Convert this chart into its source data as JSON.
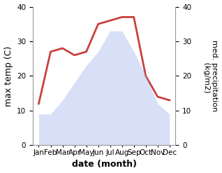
{
  "months": [
    "Jan",
    "Feb",
    "Mar",
    "Apr",
    "May",
    "Jun",
    "Jul",
    "Aug",
    "Sep",
    "Oct",
    "Nov",
    "Dec"
  ],
  "month_indices": [
    1,
    2,
    3,
    4,
    5,
    6,
    7,
    8,
    9,
    10,
    11,
    12
  ],
  "max_temp": [
    12,
    27,
    28,
    26,
    27,
    35,
    36,
    37,
    37,
    20,
    14,
    13
  ],
  "precipitation": [
    9,
    9,
    13,
    18,
    23,
    27,
    33,
    33,
    27,
    20,
    12,
    9
  ],
  "fill_color": "#aabbee",
  "precip_line_color": "#c8413c",
  "ylim_left": [
    0,
    40
  ],
  "ylim_right": [
    0,
    40
  ],
  "xlim": [
    0.5,
    12.5
  ],
  "xlabel": "date (month)",
  "ylabel_left": "max temp (C)",
  "ylabel_right": "med. precipitation\n (kg/m2)",
  "bg_color": "#ffffff",
  "tick_fontsize": 7.5,
  "label_fontsize": 9,
  "yticks": [
    0,
    10,
    20,
    30,
    40
  ],
  "right_yticks": [
    0,
    10,
    20,
    30,
    40
  ]
}
